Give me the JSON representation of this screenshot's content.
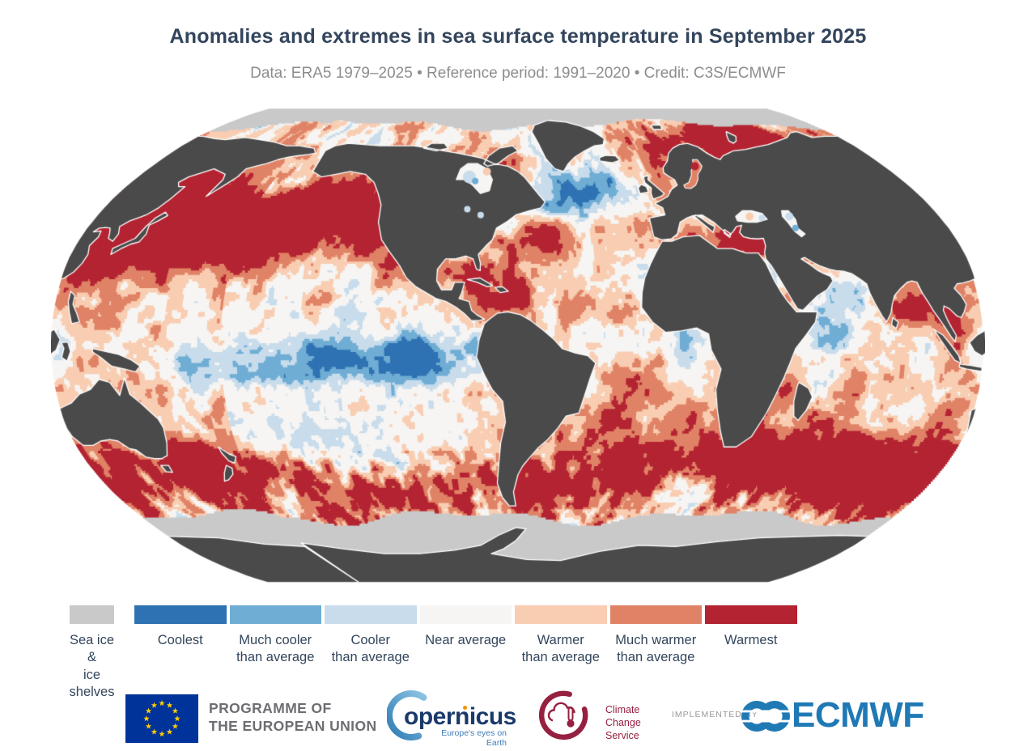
{
  "header": {
    "title": "Anomalies and extremes in sea surface temperature in September 2025",
    "subtitle": "Data: ERA5 1979–2025  •  Reference period: 1991–2020  •  Credit: C3S/ECMWF"
  },
  "legend": {
    "items": [
      {
        "label": "Sea ice &\nice shelves",
        "color": "#c9c9c9"
      },
      {
        "label": "Coolest",
        "color": "#2e72b3"
      },
      {
        "label": "Much cooler\nthan average",
        "color": "#6fadd4"
      },
      {
        "label": "Cooler\nthan average",
        "color": "#c8dcec"
      },
      {
        "label": "Near average",
        "color": "#f6f5f3"
      },
      {
        "label": "Warmer\nthan average",
        "color": "#f9cdb1"
      },
      {
        "label": "Much warmer\nthan average",
        "color": "#e08266"
      },
      {
        "label": "Warmest",
        "color": "#b42331"
      }
    ]
  },
  "map": {
    "land_color": "#4a4a4a",
    "sea_ice_color": "#c9c9c9",
    "coastline_color": "#ffffff",
    "background": "#ffffff"
  },
  "footer": {
    "eu_label_line1": "PROGRAMME OF",
    "eu_label_line2": "THE EUROPEAN UNION",
    "copernicus_name": "opernicus",
    "copernicus_tagline": "Europe's eyes on Earth",
    "c3s_line1": "Climate",
    "c3s_line2": "Change Service",
    "implemented_by": "IMPLEMENTED BY",
    "ecmwf": "ECMWF"
  }
}
